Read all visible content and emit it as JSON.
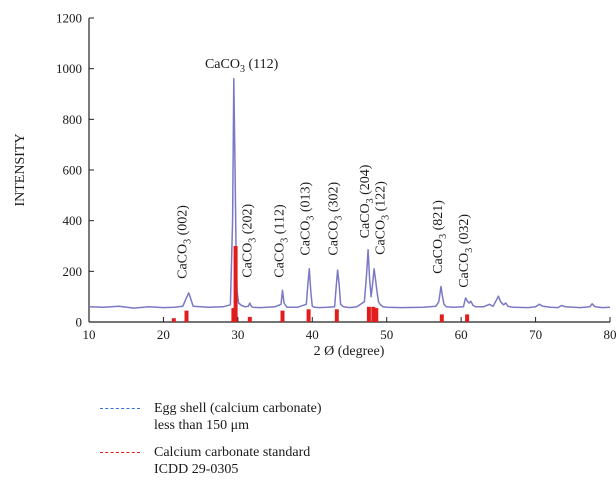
{
  "chart_data": {
    "type": "line",
    "xlabel": "2 Ø (degree)",
    "ylabel": "INTENSITY",
    "xlim": [
      10,
      80
    ],
    "ylim": [
      0,
      1200
    ],
    "x_ticks": [
      10,
      20,
      30,
      40,
      50,
      60,
      70,
      80
    ],
    "y_ticks": [
      0,
      200,
      400,
      600,
      800,
      1000,
      1200
    ],
    "colors": {
      "sample": "#7b78c4",
      "standard": "#e21d1d",
      "legend_sample": "#3b6fd8",
      "legend_standard": "#e21d1d"
    },
    "series": [
      {
        "name": "Egg shell (calcium carbonate)\nless than 150 μm",
        "x": [
          10,
          12,
          14,
          16,
          18,
          20,
          21.5,
          22.6,
          23.0,
          23.4,
          24.0,
          26,
          28,
          29.0,
          29.3,
          29.45,
          29.6,
          29.75,
          29.9,
          30.1,
          30.5,
          31.0,
          31.4,
          31.6,
          31.8,
          32.0,
          33,
          35,
          35.8,
          36.0,
          36.2,
          36.6,
          37,
          38,
          39.2,
          39.4,
          39.6,
          39.8,
          40.0,
          40.3,
          41,
          42,
          43.0,
          43.2,
          43.4,
          43.6,
          43.8,
          44.2,
          45,
          46,
          47.0,
          47.3,
          47.5,
          47.7,
          47.9,
          48.1,
          48.3,
          48.5,
          48.7,
          48.9,
          49.1,
          49.5,
          50,
          52,
          55,
          56.6,
          57.0,
          57.3,
          57.5,
          57.7,
          58.0,
          59,
          60.3,
          60.6,
          60.9,
          61.1,
          61.3,
          61.6,
          62,
          63,
          63.8,
          64.3,
          64.8,
          65.0,
          65.3,
          65.7,
          66.0,
          66.3,
          67,
          69,
          70,
          70.5,
          71,
          72,
          73,
          73.5,
          74,
          76,
          77.3,
          77.6,
          78.0,
          79,
          80
        ],
        "y": [
          60,
          58,
          62,
          55,
          60,
          57,
          58,
          62,
          90,
          115,
          62,
          58,
          60,
          68,
          400,
          960,
          650,
          300,
          120,
          75,
          65,
          60,
          62,
          75,
          62,
          58,
          57,
          60,
          70,
          125,
          75,
          58,
          58,
          58,
          70,
          145,
          210,
          120,
          62,
          58,
          57,
          58,
          60,
          135,
          205,
          150,
          70,
          60,
          57,
          60,
          80,
          190,
          285,
          170,
          100,
          150,
          210,
          165,
          120,
          80,
          70,
          60,
          58,
          57,
          58,
          62,
          80,
          140,
          100,
          70,
          60,
          58,
          60,
          95,
          80,
          75,
          82,
          65,
          60,
          60,
          70,
          62,
          90,
          102,
          80,
          68,
          75,
          62,
          58,
          57,
          60,
          70,
          62,
          58,
          57,
          65,
          60,
          57,
          60,
          72,
          60,
          57,
          58
        ]
      },
      {
        "name": "Calcium carbonate standard\nICDD 29-0305",
        "sticks": [
          {
            "x": 21.4,
            "y": 15
          },
          {
            "x": 23.1,
            "y": 45
          },
          {
            "x": 29.4,
            "y": 55
          },
          {
            "x": 29.7,
            "y": 300
          },
          {
            "x": 31.6,
            "y": 20
          },
          {
            "x": 36.0,
            "y": 45
          },
          {
            "x": 39.5,
            "y": 50
          },
          {
            "x": 43.3,
            "y": 50
          },
          {
            "x": 47.6,
            "y": 60
          },
          {
            "x": 48.2,
            "y": 60
          },
          {
            "x": 48.6,
            "y": 55
          },
          {
            "x": 57.4,
            "y": 30
          },
          {
            "x": 60.8,
            "y": 30
          }
        ]
      }
    ],
    "annotations": [
      {
        "base": "CaCO",
        "sub": "3",
        "suffix": " (112)",
        "x": 30.5,
        "y": 1003,
        "rotate": false
      },
      {
        "base": "CaCO",
        "sub": "3",
        "suffix": " (002)",
        "x": 23.1,
        "y": 170,
        "rotate": true
      },
      {
        "base": "CaCO",
        "sub": "3",
        "suffix": " (202)",
        "x": 31.8,
        "y": 175,
        "rotate": true
      },
      {
        "base": "CaCO",
        "sub": "3",
        "suffix": " (112)",
        "x": 36.1,
        "y": 175,
        "rotate": true
      },
      {
        "base": "CaCO",
        "sub": "3",
        "suffix": " (013)",
        "x": 39.6,
        "y": 262,
        "rotate": true
      },
      {
        "base": "CaCO",
        "sub": "3",
        "suffix": " (302)",
        "x": 43.4,
        "y": 262,
        "rotate": true
      },
      {
        "base": "CaCO",
        "sub": "3",
        "suffix": " (204)",
        "x": 47.6,
        "y": 330,
        "rotate": true
      },
      {
        "base": "CaCO",
        "sub": "3",
        "suffix": " (122)",
        "x": 49.7,
        "y": 265,
        "rotate": true
      },
      {
        "base": "CaCO",
        "sub": "3",
        "suffix": " (821)",
        "x": 57.4,
        "y": 190,
        "rotate": true
      },
      {
        "base": "CaCO",
        "sub": "3",
        "suffix": " (032)",
        "x": 60.9,
        "y": 135,
        "rotate": true
      }
    ]
  }
}
